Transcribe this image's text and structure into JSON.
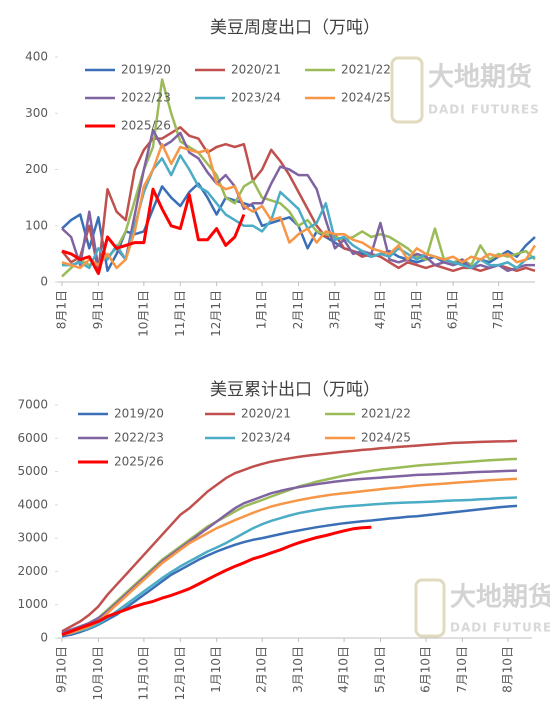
{
  "watermark": {
    "cn": "大地期货",
    "en": "DADI FUTURES"
  },
  "chart_data": [
    {
      "type": "line",
      "title": "美豆周度出口（万吨）",
      "legend": "top",
      "grid": false,
      "ylim": [
        0,
        400
      ],
      "yticks": [
        0,
        100,
        200,
        300,
        400
      ],
      "categories": [
        "8月1日",
        null,
        null,
        null,
        "9月1日",
        null,
        null,
        null,
        null,
        "10月1日",
        null,
        null,
        null,
        "11月1日",
        null,
        null,
        null,
        "12月1日",
        null,
        null,
        null,
        null,
        "1月1日",
        null,
        null,
        null,
        "2月1日",
        null,
        null,
        null,
        "3月1日",
        null,
        null,
        null,
        null,
        "4月1日",
        null,
        null,
        null,
        "5月1日",
        null,
        null,
        null,
        "6月1日",
        null,
        null,
        null,
        null,
        "7月1日",
        null,
        null,
        null,
        null
      ],
      "series": [
        {
          "name": "2019/20",
          "color": "#3a6fb8",
          "values": [
            95,
            110,
            120,
            60,
            115,
            20,
            50,
            90,
            85,
            90,
            130,
            170,
            150,
            135,
            160,
            175,
            150,
            120,
            150,
            145,
            140,
            135,
            100,
            105,
            110,
            115,
            100,
            60,
            90,
            80,
            70,
            60,
            55,
            50,
            45,
            50,
            55,
            45,
            40,
            35,
            40,
            45,
            35,
            30,
            35,
            25,
            40,
            35,
            45,
            55,
            45,
            65,
            80
          ]
        },
        {
          "name": "2020/21",
          "color": "#c0504d",
          "values": [
            55,
            35,
            45,
            100,
            20,
            165,
            125,
            110,
            200,
            235,
            255,
            255,
            265,
            275,
            260,
            255,
            230,
            240,
            245,
            240,
            245,
            180,
            200,
            235,
            215,
            190,
            160,
            130,
            100,
            80,
            85,
            60,
            55,
            45,
            50,
            45,
            35,
            25,
            35,
            30,
            25,
            30,
            25,
            20,
            25,
            25,
            20,
            25,
            30,
            25,
            20,
            25,
            20
          ]
        },
        {
          "name": "2021/22",
          "color": "#9bbb59",
          "values": [
            10,
            25,
            40,
            30,
            35,
            45,
            60,
            90,
            145,
            200,
            240,
            360,
            300,
            250,
            240,
            230,
            210,
            190,
            150,
            140,
            170,
            180,
            150,
            145,
            140,
            125,
            100,
            110,
            90,
            85,
            80,
            75,
            80,
            90,
            80,
            85,
            80,
            70,
            60,
            45,
            40,
            95,
            40,
            35,
            40,
            30,
            65,
            40,
            50,
            45,
            50,
            55,
            40
          ]
        },
        {
          "name": "2022/23",
          "color": "#8064a2",
          "values": [
            95,
            80,
            30,
            125,
            25,
            80,
            60,
            40,
            120,
            200,
            270,
            240,
            250,
            265,
            230,
            220,
            195,
            175,
            190,
            170,
            130,
            140,
            140,
            175,
            205,
            200,
            190,
            190,
            165,
            110,
            60,
            75,
            50,
            55,
            50,
            105,
            40,
            35,
            40,
            50,
            45,
            30,
            35,
            30,
            40,
            25,
            30,
            25,
            30,
            20,
            25,
            30,
            30
          ]
        },
        {
          "name": "2023/24",
          "color": "#4bacc6",
          "values": [
            30,
            30,
            35,
            25,
            60,
            40,
            65,
            40,
            100,
            160,
            200,
            220,
            190,
            225,
            200,
            170,
            160,
            140,
            120,
            110,
            100,
            100,
            90,
            110,
            160,
            145,
            130,
            95,
            105,
            140,
            75,
            80,
            65,
            55,
            45,
            50,
            45,
            60,
            50,
            40,
            50,
            45,
            40,
            35,
            30,
            25,
            40,
            30,
            30,
            35,
            25,
            40,
            45
          ]
        },
        {
          "name": "2024/25",
          "color": "#f79646",
          "values": [
            35,
            30,
            25,
            40,
            30,
            50,
            25,
            40,
            90,
            170,
            200,
            245,
            210,
            240,
            235,
            230,
            235,
            175,
            165,
            170,
            135,
            125,
            135,
            110,
            115,
            70,
            85,
            95,
            70,
            90,
            85,
            85,
            75,
            70,
            60,
            55,
            50,
            65,
            40,
            60,
            50,
            45,
            40,
            45,
            35,
            45,
            40,
            50,
            45,
            50,
            35,
            40,
            65
          ]
        },
        {
          "name": "2025/26",
          "color": "#ff0000",
          "values": [
            55,
            50,
            40,
            45,
            15,
            80,
            60,
            65,
            70,
            70,
            165,
            130,
            100,
            95,
            155,
            75,
            75,
            95,
            65,
            80,
            120,
            null,
            null,
            null,
            null,
            null,
            null,
            null,
            null,
            null,
            null,
            null,
            null,
            null,
            null,
            null,
            null,
            null,
            null,
            null,
            null,
            null,
            null,
            null,
            null,
            null,
            null,
            null,
            null,
            null,
            null,
            null,
            null
          ]
        }
      ]
    },
    {
      "type": "line",
      "title": "美豆累计出口（万吨）",
      "legend": "top",
      "grid": false,
      "ylim": [
        0,
        7000
      ],
      "yticks": [
        0,
        1000,
        2000,
        3000,
        4000,
        5000,
        6000,
        7000
      ],
      "categories": [
        "9月10日",
        null,
        null,
        null,
        "10月10日",
        null,
        null,
        null,
        null,
        "11月10日",
        null,
        null,
        null,
        "12月10日",
        null,
        null,
        null,
        "1月10日",
        null,
        null,
        null,
        null,
        "2月10日",
        null,
        null,
        null,
        "3月10日",
        null,
        null,
        null,
        null,
        "4月10日",
        null,
        null,
        null,
        "5月10日",
        null,
        null,
        null,
        null,
        "6月10日",
        null,
        null,
        null,
        "7月10日",
        null,
        null,
        null,
        null,
        "8月10日",
        null
      ],
      "series": [
        {
          "name": "2019/20",
          "color": "#3a6fb8",
          "values": [
            50,
            100,
            180,
            280,
            400,
            550,
            700,
            900,
            1100,
            1300,
            1500,
            1700,
            1900,
            2050,
            2200,
            2350,
            2480,
            2600,
            2700,
            2800,
            2880,
            2950,
            3000,
            3060,
            3120,
            3180,
            3230,
            3280,
            3330,
            3370,
            3410,
            3450,
            3480,
            3510,
            3530,
            3560,
            3590,
            3610,
            3640,
            3660,
            3690,
            3720,
            3750,
            3780,
            3810,
            3840,
            3870,
            3900,
            3930,
            3950,
            3970
          ]
        },
        {
          "name": "2020/21",
          "color": "#c0504d",
          "values": [
            200,
            350,
            500,
            700,
            950,
            1300,
            1600,
            1900,
            2200,
            2500,
            2800,
            3100,
            3400,
            3700,
            3900,
            4150,
            4400,
            4600,
            4800,
            4950,
            5050,
            5150,
            5230,
            5300,
            5350,
            5400,
            5440,
            5480,
            5510,
            5540,
            5570,
            5600,
            5620,
            5650,
            5670,
            5700,
            5720,
            5740,
            5760,
            5780,
            5800,
            5820,
            5840,
            5860,
            5870,
            5880,
            5890,
            5900,
            5905,
            5910,
            5920
          ]
        },
        {
          "name": "2021/22",
          "color": "#9bbb59",
          "values": [
            100,
            200,
            300,
            450,
            600,
            850,
            1100,
            1350,
            1600,
            1850,
            2100,
            2350,
            2550,
            2750,
            2950,
            3150,
            3350,
            3500,
            3650,
            3800,
            3950,
            4050,
            4150,
            4250,
            4350,
            4450,
            4550,
            4620,
            4700,
            4760,
            4820,
            4880,
            4930,
            4980,
            5020,
            5060,
            5090,
            5120,
            5150,
            5180,
            5200,
            5220,
            5240,
            5260,
            5280,
            5300,
            5320,
            5340,
            5355,
            5370,
            5380
          ]
        },
        {
          "name": "2022/23",
          "color": "#8064a2",
          "values": [
            150,
            250,
            350,
            450,
            600,
            800,
            1050,
            1300,
            1550,
            1800,
            2050,
            2300,
            2500,
            2700,
            2900,
            3100,
            3300,
            3500,
            3700,
            3900,
            4050,
            4150,
            4250,
            4350,
            4420,
            4480,
            4530,
            4580,
            4620,
            4660,
            4700,
            4730,
            4760,
            4780,
            4800,
            4820,
            4840,
            4860,
            4880,
            4900,
            4910,
            4920,
            4930,
            4950,
            4960,
            4980,
            4990,
            5000,
            5010,
            5020,
            5030
          ]
        },
        {
          "name": "2023/24",
          "color": "#4bacc6",
          "values": [
            100,
            150,
            220,
            300,
            420,
            600,
            800,
            1000,
            1200,
            1400,
            1600,
            1800,
            1980,
            2150,
            2300,
            2450,
            2600,
            2720,
            2850,
            3000,
            3150,
            3300,
            3420,
            3520,
            3600,
            3680,
            3750,
            3800,
            3850,
            3890,
            3920,
            3950,
            3970,
            3990,
            4010,
            4030,
            4050,
            4060,
            4070,
            4080,
            4090,
            4100,
            4120,
            4130,
            4140,
            4150,
            4170,
            4180,
            4200,
            4210,
            4220
          ]
        },
        {
          "name": "2024/25",
          "color": "#f79646",
          "values": [
            100,
            150,
            250,
            350,
            500,
            750,
            1000,
            1250,
            1500,
            1750,
            2000,
            2250,
            2450,
            2650,
            2850,
            3000,
            3150,
            3300,
            3420,
            3540,
            3650,
            3760,
            3860,
            3950,
            4020,
            4080,
            4140,
            4190,
            4240,
            4280,
            4320,
            4350,
            4380,
            4410,
            4440,
            4470,
            4500,
            4520,
            4550,
            4580,
            4600,
            4620,
            4640,
            4660,
            4680,
            4700,
            4720,
            4740,
            4755,
            4770,
            4780
          ]
        },
        {
          "name": "2025/26",
          "color": "#ff0000",
          "values": [
            100,
            200,
            300,
            400,
            500,
            650,
            750,
            850,
            950,
            1030,
            1100,
            1200,
            1280,
            1380,
            1480,
            1620,
            1760,
            1900,
            2030,
            2150,
            2260,
            2380,
            2460,
            2560,
            2650,
            2760,
            2860,
            2940,
            3020,
            3080,
            3150,
            3220,
            3280,
            3310,
            3330,
            null,
            null,
            null,
            null,
            null,
            null,
            null,
            null,
            null,
            null,
            null,
            null,
            null,
            null,
            null,
            null
          ]
        }
      ]
    }
  ]
}
